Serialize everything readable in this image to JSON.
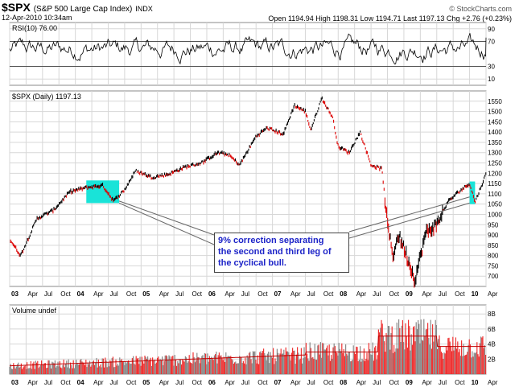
{
  "header": {
    "symbol": "$SPX",
    "name": "(S&P 500 Large Cap Index)",
    "exchange": "INDX",
    "date": "12-Apr-2010 10:34am",
    "ohlc": "Open 1194.94 High 1198.31 Low 1194.71 Last 1197.13 Chg +2.76 (+0.23%)",
    "watermark": "© StockCharts.com"
  },
  "panels": {
    "rsi_label": "RSI(10) 76.00",
    "price_label": "$SPX (Daily) 1197.13",
    "volume_label": "Volume undef"
  },
  "annotation": {
    "lines": [
      "9% correction separating",
      "the second and third leg of",
      "the cyclical bull."
    ]
  },
  "colors": {
    "price_line": "#000000",
    "price_down": "#dd0000",
    "highlight": "#19e3d8",
    "volume_fill": "#ee3333",
    "volume_bar": "#888888",
    "grid": "#d7d7d7",
    "callout_text": "#1d24c8"
  },
  "chart_data": [
    {
      "type": "line",
      "title": "RSI(10) 76.00",
      "ylim": [
        0,
        100
      ],
      "y_ticks": [
        10,
        30,
        70,
        90
      ],
      "reference_lines": [
        30,
        70
      ]
    },
    {
      "type": "line",
      "title": "$SPX (Daily) 1197.13",
      "ylim": [
        650,
        1600
      ],
      "y_ticks": [
        700,
        750,
        800,
        850,
        900,
        950,
        1000,
        1050,
        1100,
        1150,
        1200,
        1250,
        1300,
        1350,
        1400,
        1450,
        1500,
        1550
      ],
      "x_labels": [
        "03",
        "Apr",
        "Jul",
        "Oct",
        "04",
        "Apr",
        "Jul",
        "Oct",
        "05",
        "Apr",
        "Jul",
        "Oct",
        "06",
        "Apr",
        "Jul",
        "Oct",
        "07",
        "Apr",
        "Jul",
        "Oct",
        "08",
        "Apr",
        "Jul",
        "Oct",
        "09",
        "Apr",
        "Jul",
        "Oct",
        "10",
        "Apr"
      ],
      "x_start": "2003-01",
      "x_end": "2010-04",
      "series": [
        {
          "x": [
            "2003-01",
            "2003-03",
            "2003-06",
            "2003-09",
            "2003-12",
            "2004-03",
            "2004-06",
            "2004-08",
            "2004-10",
            "2004-12",
            "2005-03",
            "2005-06",
            "2005-09",
            "2005-12",
            "2006-03",
            "2006-05",
            "2006-07",
            "2006-10",
            "2006-12",
            "2007-03",
            "2007-05",
            "2007-07",
            "2007-08",
            "2007-10",
            "2007-12",
            "2008-01",
            "2008-03",
            "2008-05",
            "2008-07",
            "2008-09",
            "2008-10",
            "2008-11",
            "2008-12",
            "2009-01",
            "2009-03",
            "2009-05",
            "2009-07",
            "2009-09",
            "2009-11",
            "2010-01",
            "2010-02",
            "2010-04"
          ],
          "values": [
            880,
            800,
            980,
            1020,
            1110,
            1130,
            1140,
            1065,
            1120,
            1212,
            1180,
            1195,
            1230,
            1250,
            1300,
            1290,
            1240,
            1380,
            1420,
            1390,
            1530,
            1500,
            1410,
            1565,
            1470,
            1330,
            1300,
            1400,
            1240,
            1220,
            950,
            800,
            900,
            840,
            680,
            910,
            950,
            1060,
            1110,
            1150,
            1060,
            1197
          ]
        }
      ],
      "highlight_ranges": [
        [
          "2004-03",
          "2004-09"
        ],
        [
          "2010-01",
          "2010-02"
        ]
      ]
    },
    {
      "type": "bar",
      "title": "Volume undef",
      "y_ticks": [
        "8B",
        "6B",
        "4B",
        "2B"
      ]
    }
  ]
}
